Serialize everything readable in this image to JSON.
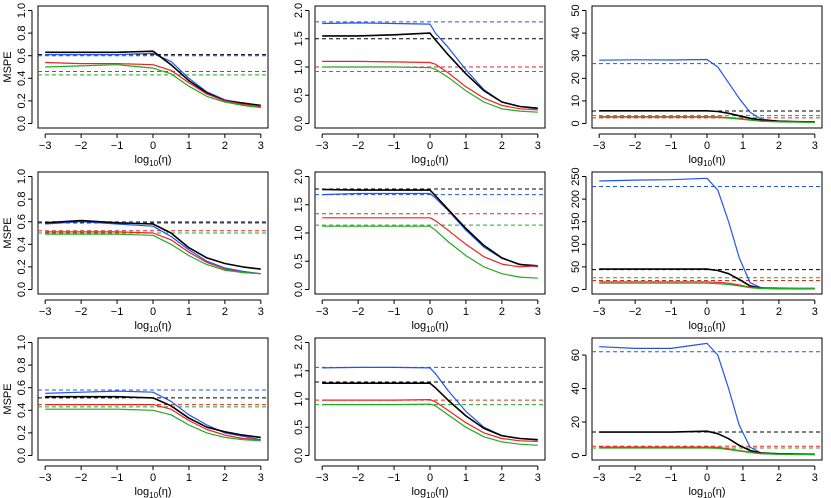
{
  "colors": {
    "blue": "#2255ee",
    "black": "#000000",
    "red": "#ee2222",
    "green": "#22aa22"
  },
  "chart_data": [
    {
      "type": "line",
      "ylabel": "MSPE",
      "xlabel_base": "log",
      "xlabel_sub": "10",
      "xlabel_arg": "(η)",
      "x": [
        -3,
        -2,
        -1,
        0,
        0.5,
        1,
        1.5,
        2,
        2.5,
        3
      ],
      "xlim": [
        -3.2,
        3.2
      ],
      "xticks": [
        -3,
        -2,
        -1,
        0,
        1,
        2,
        3
      ],
      "ylim": [
        -0.04,
        1.04
      ],
      "yticks": [
        0.0,
        0.2,
        0.4,
        0.6,
        0.8,
        1.0
      ],
      "ytick_labels": [
        "0.0",
        "0.2",
        "0.4",
        "0.6",
        "0.8",
        "1.0"
      ],
      "series": [
        {
          "name": "blue",
          "color": "blue",
          "values": [
            0.61,
            0.61,
            0.61,
            0.62,
            0.55,
            0.4,
            0.28,
            0.21,
            0.18,
            0.15
          ],
          "ref": 0.6
        },
        {
          "name": "black",
          "color": "black",
          "values": [
            0.63,
            0.63,
            0.63,
            0.64,
            0.52,
            0.38,
            0.27,
            0.2,
            0.18,
            0.16
          ],
          "ref": 0.61
        },
        {
          "name": "red",
          "color": "red",
          "values": [
            0.54,
            0.53,
            0.53,
            0.52,
            0.47,
            0.36,
            0.26,
            0.2,
            0.17,
            0.15
          ],
          "ref": 0.46
        },
        {
          "name": "green",
          "color": "green",
          "values": [
            0.5,
            0.51,
            0.52,
            0.49,
            0.44,
            0.33,
            0.24,
            0.19,
            0.16,
            0.14
          ],
          "ref": 0.43
        }
      ]
    },
    {
      "type": "line",
      "ylabel": "",
      "xlabel_base": "log",
      "xlabel_sub": "10",
      "xlabel_arg": "(η)",
      "x": [
        -3,
        -2,
        -1,
        0,
        0.15,
        0.5,
        1,
        1.5,
        2,
        2.5,
        3
      ],
      "xlim": [
        -3.2,
        3.2
      ],
      "xticks": [
        -3,
        -2,
        -1,
        0,
        1,
        2,
        3
      ],
      "ylim": [
        -0.08,
        2.08
      ],
      "yticks": [
        0.0,
        0.5,
        1.0,
        1.5,
        2.0
      ],
      "ytick_labels": [
        "0.0",
        "0.5",
        "1.0",
        "1.5",
        "2.0"
      ],
      "series": [
        {
          "name": "blue",
          "color": "blue",
          "values": [
            1.77,
            1.78,
            1.77,
            1.76,
            1.6,
            1.35,
            0.95,
            0.6,
            0.38,
            0.3,
            0.26
          ],
          "ref": 1.8
        },
        {
          "name": "black",
          "color": "black",
          "values": [
            1.55,
            1.55,
            1.57,
            1.6,
            1.48,
            1.22,
            0.88,
            0.58,
            0.38,
            0.3,
            0.27
          ],
          "ref": 1.5
        },
        {
          "name": "red",
          "color": "red",
          "values": [
            1.1,
            1.1,
            1.09,
            1.08,
            1.05,
            0.9,
            0.65,
            0.45,
            0.32,
            0.26,
            0.24
          ],
          "ref": 1.0
        },
        {
          "name": "green",
          "color": "green",
          "values": [
            1.0,
            1.0,
            1.0,
            0.99,
            0.96,
            0.82,
            0.58,
            0.38,
            0.26,
            0.22,
            0.2
          ],
          "ref": 0.92
        }
      ]
    },
    {
      "type": "line",
      "ylabel": "",
      "xlabel_base": "log",
      "xlabel_sub": "10",
      "xlabel_arg": "(η)",
      "x": [
        -3,
        -2,
        -1,
        0,
        0.3,
        0.6,
        0.9,
        1.2,
        1.5,
        2,
        2.5,
        3
      ],
      "xlim": [
        -3.2,
        3.2
      ],
      "xticks": [
        -3,
        -2,
        -1,
        0,
        1,
        2,
        3
      ],
      "ylim": [
        -2.0,
        52.0
      ],
      "yticks": [
        0,
        10,
        20,
        30,
        40,
        50
      ],
      "ytick_labels": [
        "0",
        "10",
        "20",
        "30",
        "40",
        "50"
      ],
      "series": [
        {
          "name": "blue",
          "color": "blue",
          "values": [
            28.0,
            28.2,
            28.1,
            28.3,
            25.0,
            18.0,
            11.0,
            5.0,
            2.0,
            1.0,
            0.8,
            0.7
          ],
          "ref": 26.5
        },
        {
          "name": "black",
          "color": "black",
          "values": [
            5.6,
            5.6,
            5.6,
            5.6,
            5.3,
            4.5,
            3.4,
            2.3,
            1.5,
            1.0,
            0.8,
            0.7
          ],
          "ref": 5.5
        },
        {
          "name": "red",
          "color": "red",
          "values": [
            3.0,
            3.0,
            3.0,
            3.0,
            2.9,
            2.6,
            2.2,
            1.6,
            1.1,
            0.8,
            0.7,
            0.6
          ],
          "ref": 2.5
        },
        {
          "name": "green",
          "color": "green",
          "values": [
            2.8,
            2.8,
            2.8,
            2.8,
            2.7,
            2.4,
            2.0,
            1.5,
            1.0,
            0.7,
            0.6,
            0.5
          ],
          "ref": 3.5
        }
      ]
    },
    {
      "type": "line",
      "ylabel": "MSPE",
      "xlabel_base": "log",
      "xlabel_sub": "10",
      "xlabel_arg": "(η)",
      "x": [
        -3,
        -2,
        -1,
        0,
        0.5,
        1,
        1.5,
        2,
        2.5,
        3
      ],
      "xlim": [
        -3.2,
        3.2
      ],
      "xticks": [
        -3,
        -2,
        -1,
        0,
        1,
        2,
        3
      ],
      "ylim": [
        -0.04,
        1.04
      ],
      "yticks": [
        0.0,
        0.2,
        0.4,
        0.6,
        0.8,
        1.0
      ],
      "ytick_labels": [
        "0.0",
        "0.2",
        "0.4",
        "0.6",
        "0.8",
        "1.0"
      ],
      "series": [
        {
          "name": "blue",
          "color": "blue",
          "values": [
            0.58,
            0.6,
            0.58,
            0.56,
            0.47,
            0.35,
            0.25,
            0.19,
            0.16,
            0.14
          ],
          "ref": 0.6
        },
        {
          "name": "black",
          "color": "black",
          "values": [
            0.59,
            0.61,
            0.59,
            0.58,
            0.5,
            0.37,
            0.28,
            0.23,
            0.2,
            0.18
          ],
          "ref": 0.59
        },
        {
          "name": "red",
          "color": "red",
          "values": [
            0.51,
            0.51,
            0.51,
            0.5,
            0.44,
            0.33,
            0.24,
            0.18,
            0.15,
            0.14
          ],
          "ref": 0.52
        },
        {
          "name": "green",
          "color": "green",
          "values": [
            0.49,
            0.49,
            0.49,
            0.48,
            0.4,
            0.3,
            0.22,
            0.17,
            0.15,
            0.14
          ],
          "ref": 0.5
        }
      ]
    },
    {
      "type": "line",
      "ylabel": "",
      "xlabel_base": "log",
      "xlabel_sub": "10",
      "xlabel_arg": "(η)",
      "x": [
        -3,
        -2,
        -1,
        0,
        0.15,
        0.5,
        1,
        1.5,
        2,
        2.5,
        3
      ],
      "xlim": [
        -3.2,
        3.2
      ],
      "xticks": [
        -3,
        -2,
        -1,
        0,
        1,
        2,
        3
      ],
      "ylim": [
        -0.08,
        2.08
      ],
      "yticks": [
        0.0,
        0.5,
        1.0,
        1.5,
        2.0
      ],
      "ytick_labels": [
        "0.0",
        "0.5",
        "1.0",
        "1.5",
        "2.0"
      ],
      "series": [
        {
          "name": "blue",
          "color": "blue",
          "values": [
            1.68,
            1.7,
            1.7,
            1.7,
            1.62,
            1.4,
            1.05,
            0.75,
            0.55,
            0.45,
            0.4
          ],
          "ref": 1.68
        },
        {
          "name": "black",
          "color": "black",
          "values": [
            1.77,
            1.76,
            1.76,
            1.76,
            1.66,
            1.42,
            1.08,
            0.78,
            0.56,
            0.44,
            0.42
          ],
          "ref": 1.78
        },
        {
          "name": "red",
          "color": "red",
          "values": [
            1.27,
            1.27,
            1.27,
            1.27,
            1.22,
            1.05,
            0.8,
            0.58,
            0.45,
            0.4,
            0.42
          ],
          "ref": 1.34
        },
        {
          "name": "green",
          "color": "green",
          "values": [
            1.12,
            1.12,
            1.12,
            1.12,
            1.05,
            0.85,
            0.6,
            0.4,
            0.28,
            0.22,
            0.2
          ],
          "ref": 1.14
        }
      ]
    },
    {
      "type": "line",
      "ylabel": "",
      "xlabel_base": "log",
      "xlabel_sub": "10",
      "xlabel_arg": "(η)",
      "x": [
        -3,
        -2,
        -1,
        0,
        0.3,
        0.6,
        0.9,
        1.2,
        1.5,
        2,
        2.5,
        3
      ],
      "xlim": [
        -3.2,
        3.2
      ],
      "xticks": [
        -3,
        -2,
        -1,
        0,
        1,
        2,
        3
      ],
      "ylim": [
        -10,
        260
      ],
      "yticks": [
        0,
        50,
        100,
        150,
        200,
        250
      ],
      "ytick_labels": [
        "0",
        "50",
        "100",
        "150",
        "200",
        "250"
      ],
      "series": [
        {
          "name": "blue",
          "color": "blue",
          "values": [
            240,
            242,
            243,
            246,
            220,
            150,
            70,
            15,
            4,
            3,
            2,
            2
          ],
          "ref": 228
        },
        {
          "name": "black",
          "color": "black",
          "values": [
            45,
            45,
            45,
            45,
            42,
            35,
            22,
            8,
            3,
            2,
            2,
            2
          ],
          "ref": 44
        },
        {
          "name": "red",
          "color": "red",
          "values": [
            17,
            17,
            17,
            17,
            16,
            14,
            10,
            5,
            3,
            2,
            2,
            2
          ],
          "ref": 20
        },
        {
          "name": "green",
          "color": "green",
          "values": [
            14,
            14,
            14,
            14,
            13,
            11,
            8,
            4,
            2,
            2,
            2,
            2
          ],
          "ref": 26
        }
      ]
    },
    {
      "type": "line",
      "ylabel": "MSPE",
      "xlabel_base": "log",
      "xlabel_sub": "10",
      "xlabel_arg": "(η)",
      "x": [
        -3,
        -2,
        -1,
        0,
        0.5,
        1,
        1.5,
        2,
        2.5,
        3
      ],
      "xlim": [
        -3.2,
        3.2
      ],
      "xticks": [
        -3,
        -2,
        -1,
        0,
        1,
        2,
        3
      ],
      "ylim": [
        -0.04,
        1.04
      ],
      "yticks": [
        0.0,
        0.2,
        0.4,
        0.6,
        0.8,
        1.0
      ],
      "ytick_labels": [
        "0.0",
        "0.2",
        "0.4",
        "0.6",
        "0.8",
        "1.0"
      ],
      "series": [
        {
          "name": "blue",
          "color": "blue",
          "values": [
            0.55,
            0.56,
            0.57,
            0.56,
            0.48,
            0.36,
            0.27,
            0.2,
            0.17,
            0.14
          ],
          "ref": 0.58
        },
        {
          "name": "black",
          "color": "black",
          "values": [
            0.52,
            0.52,
            0.52,
            0.51,
            0.44,
            0.33,
            0.25,
            0.21,
            0.18,
            0.16
          ],
          "ref": 0.51
        },
        {
          "name": "red",
          "color": "red",
          "values": [
            0.45,
            0.45,
            0.45,
            0.45,
            0.41,
            0.31,
            0.23,
            0.18,
            0.15,
            0.14
          ],
          "ref": 0.45
        },
        {
          "name": "green",
          "color": "green",
          "values": [
            0.41,
            0.41,
            0.41,
            0.4,
            0.36,
            0.27,
            0.2,
            0.16,
            0.14,
            0.13
          ],
          "ref": 0.43
        }
      ]
    },
    {
      "type": "line",
      "ylabel": "",
      "xlabel_base": "log",
      "xlabel_sub": "10",
      "xlabel_arg": "(η)",
      "x": [
        -3,
        -2,
        -1,
        0,
        0.15,
        0.5,
        1,
        1.5,
        2,
        2.5,
        3
      ],
      "xlim": [
        -3.2,
        3.2
      ],
      "xticks": [
        -3,
        -2,
        -1,
        0,
        1,
        2,
        3
      ],
      "ylim": [
        -0.08,
        2.08
      ],
      "yticks": [
        0.0,
        0.5,
        1.0,
        1.5,
        2.0
      ],
      "ytick_labels": [
        "0.0",
        "0.5",
        "1.0",
        "1.5",
        "2.0"
      ],
      "series": [
        {
          "name": "blue",
          "color": "blue",
          "values": [
            1.55,
            1.56,
            1.56,
            1.55,
            1.45,
            1.15,
            0.78,
            0.5,
            0.35,
            0.3,
            0.28
          ],
          "ref": 1.56
        },
        {
          "name": "black",
          "color": "black",
          "values": [
            1.28,
            1.28,
            1.28,
            1.28,
            1.2,
            0.98,
            0.7,
            0.48,
            0.35,
            0.3,
            0.28
          ],
          "ref": 1.3
        },
        {
          "name": "red",
          "color": "red",
          "values": [
            0.98,
            0.98,
            0.98,
            0.99,
            0.95,
            0.8,
            0.58,
            0.4,
            0.3,
            0.26,
            0.25
          ],
          "ref": 0.98
        },
        {
          "name": "green",
          "color": "green",
          "values": [
            0.9,
            0.9,
            0.9,
            0.91,
            0.88,
            0.72,
            0.5,
            0.33,
            0.24,
            0.2,
            0.18
          ],
          "ref": 0.9
        }
      ]
    },
    {
      "type": "line",
      "ylabel": "",
      "xlabel_base": "log",
      "xlabel_sub": "10",
      "xlabel_arg": "(η)",
      "x": [
        -3,
        -2,
        -1,
        0,
        0.3,
        0.6,
        0.9,
        1.2,
        1.5,
        2,
        2.5,
        3
      ],
      "xlim": [
        -3.2,
        3.2
      ],
      "xticks": [
        -3,
        -2,
        -1,
        0,
        1,
        2,
        3
      ],
      "ylim": [
        -2.7,
        70.2
      ],
      "yticks": [
        0,
        20,
        40,
        60
      ],
      "ytick_labels": [
        "0",
        "20",
        "40",
        "60"
      ],
      "series": [
        {
          "name": "blue",
          "color": "blue",
          "values": [
            65.0,
            64.0,
            64.0,
            67.0,
            60.0,
            40.0,
            18.0,
            5.0,
            1.5,
            1.0,
            0.8,
            0.7
          ],
          "ref": 62.0
        },
        {
          "name": "black",
          "color": "black",
          "values": [
            14.0,
            14.0,
            14.0,
            14.5,
            13.0,
            10.0,
            6.0,
            3.0,
            1.5,
            1.0,
            0.8,
            0.7
          ],
          "ref": 14.0
        },
        {
          "name": "red",
          "color": "red",
          "values": [
            5.0,
            5.0,
            5.0,
            5.0,
            4.8,
            4.0,
            3.0,
            2.0,
            1.2,
            0.8,
            0.7,
            0.6
          ],
          "ref": 5.5
        },
        {
          "name": "green",
          "color": "green",
          "values": [
            4.5,
            4.5,
            4.5,
            4.5,
            4.3,
            3.6,
            2.7,
            1.8,
            1.0,
            0.7,
            0.6,
            0.5
          ],
          "ref": 4.5
        }
      ]
    }
  ]
}
